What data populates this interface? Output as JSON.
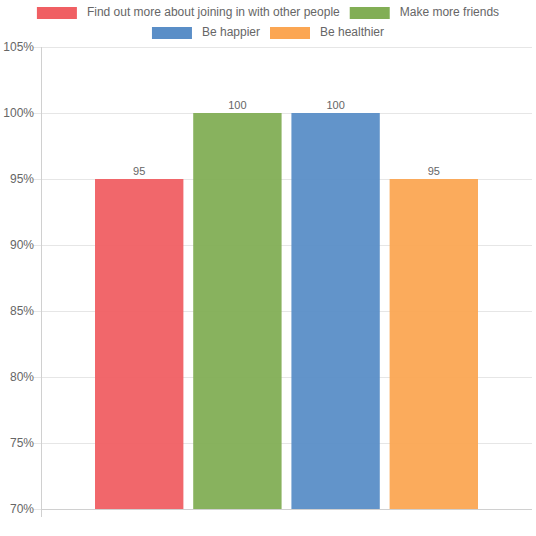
{
  "chart_data": {
    "type": "bar",
    "categories": [
      null
    ],
    "series": [
      {
        "name": "Find out more about joining in with other people",
        "color": "#f05f63",
        "values": [
          95
        ]
      },
      {
        "name": "Make more friends",
        "color": "#82ae55",
        "values": [
          100
        ]
      },
      {
        "name": "Be happier",
        "color": "#5a8ec7",
        "values": [
          100
        ]
      },
      {
        "name": "Be healthier",
        "color": "#fba653",
        "values": [
          95
        ]
      }
    ],
    "ylim": [
      70,
      105
    ],
    "yticks": [
      {
        "value": 70,
        "label": "70%"
      },
      {
        "value": 75,
        "label": "75%"
      },
      {
        "value": 80,
        "label": "80%"
      },
      {
        "value": 85,
        "label": "85%"
      },
      {
        "value": 90,
        "label": "90%"
      },
      {
        "value": 95,
        "label": "95%"
      },
      {
        "value": 100,
        "label": "100%"
      },
      {
        "value": 105,
        "label": "105%"
      }
    ],
    "grid": true,
    "legend": "top",
    "data_labels": true
  }
}
